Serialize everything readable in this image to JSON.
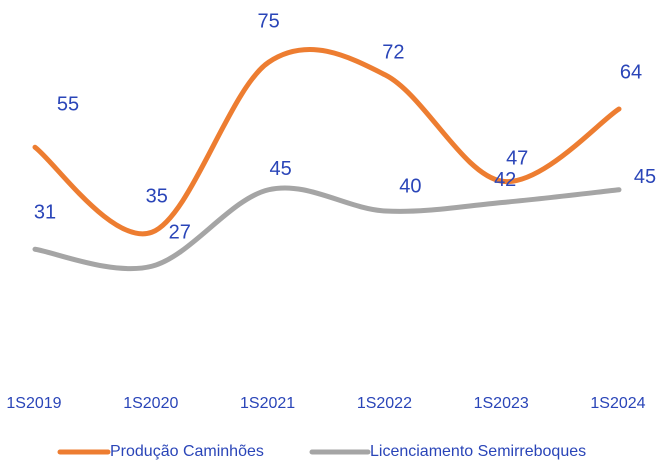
{
  "chart_data": {
    "type": "line",
    "categories": [
      "1S2019",
      "1S2020",
      "1S2021",
      "1S2022",
      "1S2023",
      "1S2024"
    ],
    "series": [
      {
        "name": "Produção Caminhões",
        "color": "#ed7d31",
        "values": [
          55,
          35,
          75,
          72,
          47,
          64
        ]
      },
      {
        "name": "Licenciamento Semirreboques",
        "color": "#a5a5a5",
        "values": [
          31,
          27,
          45,
          40,
          42,
          45
        ]
      }
    ],
    "ylim": [
      0,
      90
    ],
    "legend": "bottom",
    "smooth": true
  }
}
